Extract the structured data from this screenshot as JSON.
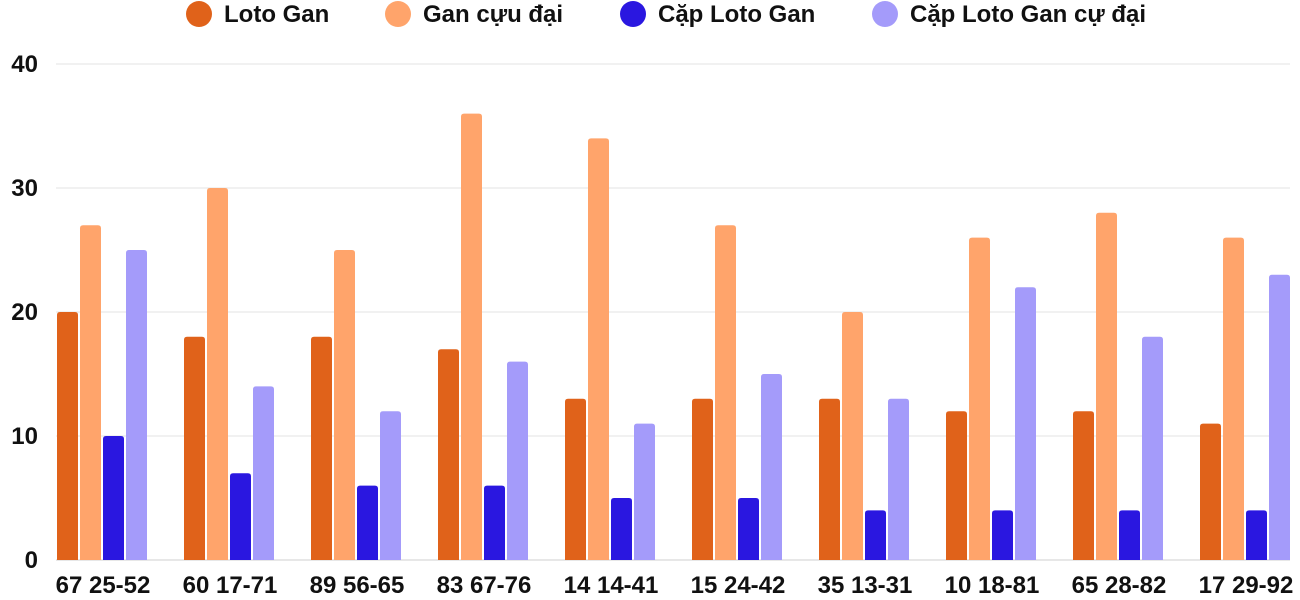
{
  "chart_data": {
    "type": "bar",
    "title": "",
    "xlabel": "",
    "ylabel": "",
    "ylim": [
      0,
      40
    ],
    "yticks": [
      0,
      10,
      20,
      30,
      40
    ],
    "grid": true,
    "legend_position": "top",
    "categories": [
      "67 25-52",
      "60 17-71",
      "89 56-65",
      "83 67-76",
      "14 14-41",
      "15 24-42",
      "35 13-31",
      "10 18-81",
      "65 28-82",
      "17 29-92"
    ],
    "series": [
      {
        "name": "Loto Gan",
        "color": "#e0621a",
        "values": [
          20,
          18,
          18,
          17,
          13,
          13,
          13,
          12,
          12,
          11
        ]
      },
      {
        "name": "Gan cựu đại",
        "color": "#ffa46b",
        "values": [
          27,
          30,
          25,
          36,
          34,
          27,
          20,
          26,
          28,
          26
        ]
      },
      {
        "name": "Cặp Loto Gan",
        "color": "#2a17e0",
        "values": [
          10,
          7,
          6,
          6,
          5,
          5,
          4,
          4,
          4,
          4
        ]
      },
      {
        "name": "Cặp Loto Gan cự đại",
        "color": "#a49bfa",
        "values": [
          25,
          14,
          12,
          16,
          11,
          15,
          13,
          22,
          18,
          23
        ]
      }
    ]
  }
}
